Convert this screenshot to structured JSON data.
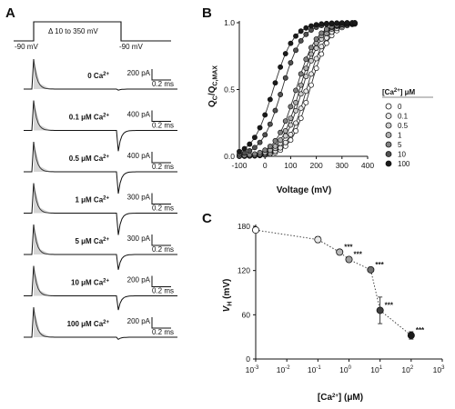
{
  "panels": {
    "A": {
      "letter": "A",
      "protocol": {
        "holding_left": "-90 mV",
        "step_label": "Δ 10 to 350 mV",
        "holding_right": "-90 mV"
      },
      "traces": [
        {
          "label": "0 Ca",
          "sup": "2+",
          "scale_y": "200 pA",
          "scale_x": "0.2 ms",
          "peak": 1.0,
          "tail": 0.05
        },
        {
          "label": "0.1 μM Ca",
          "sup": "2+",
          "scale_y": "400 pA",
          "scale_x": "0.2 ms",
          "peak": 1.0,
          "tail": 0.95
        },
        {
          "label": "0.5 μM Ca",
          "sup": "2+",
          "scale_y": "400 pA",
          "scale_x": "0.2 ms",
          "peak": 1.0,
          "tail": 1.0
        },
        {
          "label": "1 μM Ca",
          "sup": "2+",
          "scale_y": "300 pA",
          "scale_x": "0.2 ms",
          "peak": 1.0,
          "tail": 1.0
        },
        {
          "label": "5 μM Ca",
          "sup": "2+",
          "scale_y": "300 pA",
          "scale_x": "0.2 ms",
          "peak": 1.0,
          "tail": 0.7
        },
        {
          "label": "10 μM Ca",
          "sup": "2+",
          "scale_y": "200 pA",
          "scale_x": "0.2 ms",
          "peak": 1.0,
          "tail": 0.65
        },
        {
          "label": "100 μM Ca",
          "sup": "2+",
          "scale_y": "200 pA",
          "scale_x": "0.2 ms",
          "peak": 1.0,
          "tail": 0.1
        }
      ]
    },
    "B": {
      "letter": "B",
      "legend_title": "[Ca",
      "legend_title_sup": "2+",
      "legend_title_end": "] μM",
      "legend": [
        {
          "label": "0",
          "color": "#ffffff"
        },
        {
          "label": "0.1",
          "color": "#e8e8e8"
        },
        {
          "label": "0.5",
          "color": "#cfcfcf"
        },
        {
          "label": "1",
          "color": "#b0b0b0"
        },
        {
          "label": "5",
          "color": "#808080"
        },
        {
          "label": "10",
          "color": "#505050"
        },
        {
          "label": "100",
          "color": "#1a1a1a"
        }
      ]
    },
    "C": {
      "letter": "C"
    }
  },
  "chart_data": [
    {
      "type": "line",
      "panel": "B",
      "xlabel": "Voltage (mV)",
      "ylabel_main": "Q",
      "ylabel_sub1": "C",
      "ylabel_slash": "/Q",
      "ylabel_sub2": "C,MAX",
      "xlim": [
        -100,
        400
      ],
      "ylim": [
        0,
        1.0
      ],
      "xticks": [
        -100,
        0,
        100,
        200,
        300,
        400
      ],
      "yticks": [
        0.0,
        0.5,
        1.0
      ],
      "ytick_labels": [
        "0.0",
        "0.5",
        "1.0"
      ],
      "voltages": [
        -100,
        -80,
        -60,
        -40,
        -20,
        0,
        20,
        40,
        60,
        80,
        100,
        120,
        140,
        160,
        180,
        200,
        220,
        240,
        260,
        280,
        300,
        320,
        340,
        350
      ],
      "series": [
        {
          "name": "0",
          "color": "#ffffff",
          "vh": 175,
          "slope": 38
        },
        {
          "name": "0.1",
          "color": "#e8e8e8",
          "vh": 162,
          "slope": 38
        },
        {
          "name": "0.5",
          "color": "#cfcfcf",
          "vh": 145,
          "slope": 38
        },
        {
          "name": "1",
          "color": "#b0b0b0",
          "vh": 135,
          "slope": 38
        },
        {
          "name": "5",
          "color": "#808080",
          "vh": 121,
          "slope": 40
        },
        {
          "name": "10",
          "color": "#505050",
          "vh": 66,
          "slope": 40
        },
        {
          "name": "100",
          "color": "#1a1a1a",
          "vh": 32,
          "slope": 40
        }
      ]
    },
    {
      "type": "scatter",
      "panel": "C",
      "xlabel": "[Ca",
      "xlabel_sup": "2+",
      "xlabel_end": "] (μM)",
      "ylabel": "V",
      "ylabel_sub": "H",
      "ylabel_unit": " (mV)",
      "xscale": "log",
      "xlim_exp": [
        -3,
        3
      ],
      "xtick_base": "10",
      "xtick_exps": [
        "-3",
        "-2",
        "-1",
        "0",
        "1",
        "2",
        "3"
      ],
      "ylim": [
        0,
        180
      ],
      "yticks": [
        0,
        60,
        120,
        180
      ],
      "points": [
        {
          "x": 0.001,
          "y": 175,
          "err": 2,
          "color": "#ffffff",
          "sig": ""
        },
        {
          "x": 0.1,
          "y": 162,
          "err": 4,
          "color": "#e8e8e8",
          "sig": ""
        },
        {
          "x": 0.5,
          "y": 145,
          "err": 3,
          "color": "#b8b8b8",
          "sig": "***"
        },
        {
          "x": 1,
          "y": 135,
          "err": 3,
          "color": "#a0a0a0",
          "sig": "***"
        },
        {
          "x": 5,
          "y": 121,
          "err": 3,
          "color": "#707070",
          "sig": "***"
        },
        {
          "x": 10,
          "y": 66,
          "err": 18,
          "color": "#404040",
          "sig": "***"
        },
        {
          "x": 100,
          "y": 32,
          "err": 5,
          "color": "#1a1a1a",
          "sig": "***"
        }
      ]
    }
  ]
}
